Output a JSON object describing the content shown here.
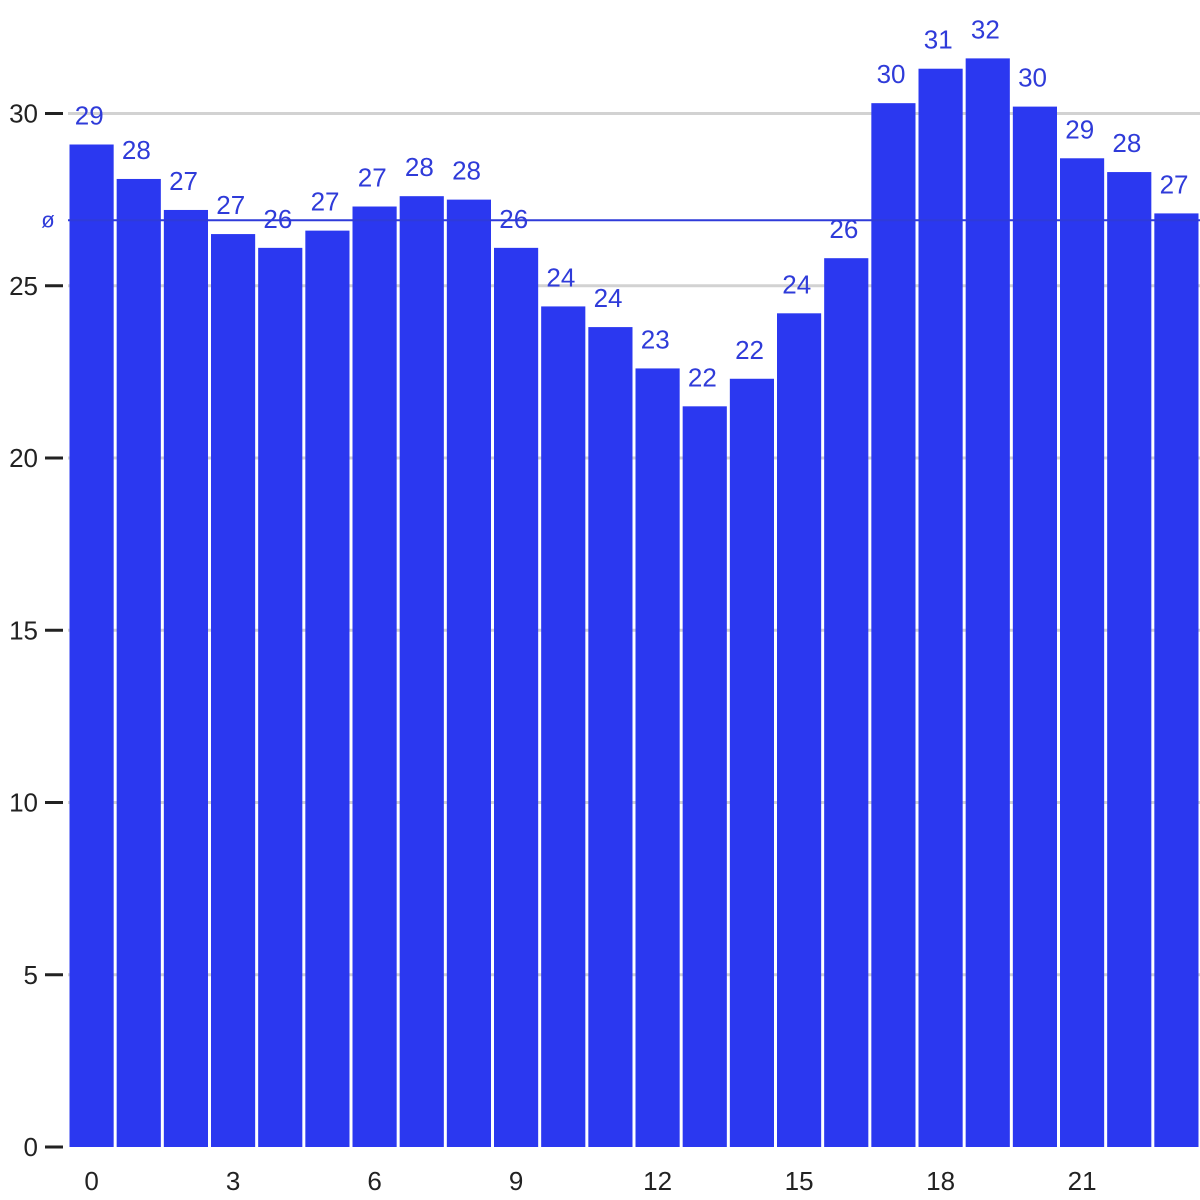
{
  "chart_data": {
    "type": "bar",
    "title": "",
    "xlabel": "",
    "ylabel": "",
    "categories": [
      "0",
      "1",
      "2",
      "3",
      "4",
      "5",
      "6",
      "7",
      "8",
      "9",
      "10",
      "11",
      "12",
      "13",
      "14",
      "15",
      "16",
      "17",
      "18",
      "19",
      "20",
      "21",
      "22",
      "23"
    ],
    "x_tick_labels": [
      "0",
      "3",
      "6",
      "9",
      "12",
      "15",
      "18",
      "21"
    ],
    "values": [
      29.1,
      28.1,
      27.2,
      26.5,
      26.1,
      26.6,
      27.3,
      27.6,
      27.5,
      26.1,
      24.4,
      23.8,
      22.6,
      21.5,
      22.3,
      24.2,
      25.8,
      30.3,
      31.3,
      31.6,
      30.2,
      28.7,
      28.3,
      27.1
    ],
    "data_labels": [
      "29",
      "28",
      "27",
      "27",
      "26",
      "27",
      "27",
      "28",
      "28",
      "26",
      "24",
      "24",
      "23",
      "22",
      "22",
      "24",
      "26",
      "30",
      "31",
      "32",
      "30",
      "29",
      "28",
      "27"
    ],
    "y_ticks": [
      0,
      5,
      10,
      15,
      20,
      25,
      30
    ],
    "ylim": [
      0,
      33
    ],
    "average": 26.9,
    "average_label": "ø",
    "grid": "horizontal",
    "colors": {
      "bar": "#2b38f0",
      "bar_label": "#2f3bd9",
      "average_line": "#2f3bd9",
      "grid": "#d2d2d2",
      "axis_text": "#222222"
    }
  }
}
